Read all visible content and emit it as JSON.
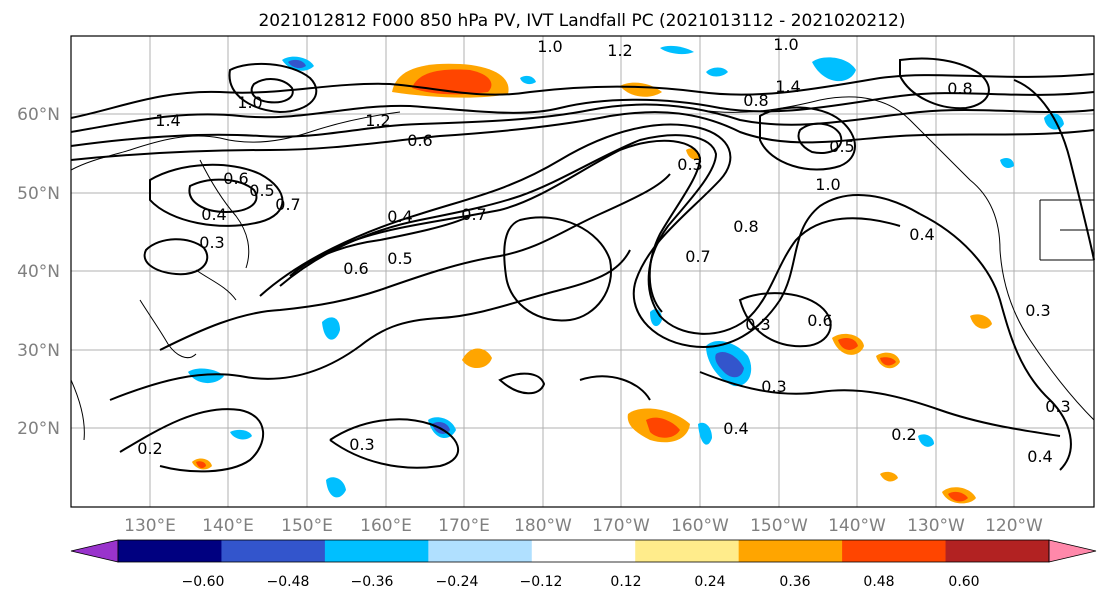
{
  "title": "2021012812 F000 850 hPa PV, IVT Landfall PC (2021013112 - 2021020212)",
  "lat_labels": [
    "60°N",
    "50°N",
    "40°N",
    "30°N",
    "20°N"
  ],
  "lon_labels": [
    "130°E",
    "140°E",
    "150°E",
    "160°E",
    "170°E",
    "180°W",
    "170°W",
    "160°W",
    "150°W",
    "140°W",
    "130°W",
    "120°W"
  ],
  "colorbar": {
    "ticks": [
      "−0.60",
      "−0.48",
      "−0.36",
      "−0.24",
      "−0.12",
      "0.12",
      "0.24",
      "0.36",
      "0.48",
      "0.60"
    ],
    "colors": [
      "#9933cc",
      "#000080",
      "#3355cc",
      "#00bfff",
      "#b0e0ff",
      "#ffffff",
      "#ffec8b",
      "#ffa500",
      "#ff4500",
      "#b22222",
      "#ff88aa"
    ]
  },
  "contour_labels": [
    "1.0",
    "1.2",
    "1.0",
    "1.4",
    "0.8",
    "1.0",
    "1.2",
    "1.4",
    "0.8",
    "0.6",
    "0.5",
    "1.0",
    "0.6",
    "0.7",
    "0.4",
    "0.5",
    "0.3",
    "0.7",
    "0.4",
    "0.6",
    "0.5",
    "0.8",
    "0.3",
    "0.4",
    "0.3",
    "0.7",
    "0.3",
    "0.6",
    "0.3",
    "0.2",
    "0.3",
    "0.2",
    "0.3",
    "0.4",
    "0.4"
  ]
}
